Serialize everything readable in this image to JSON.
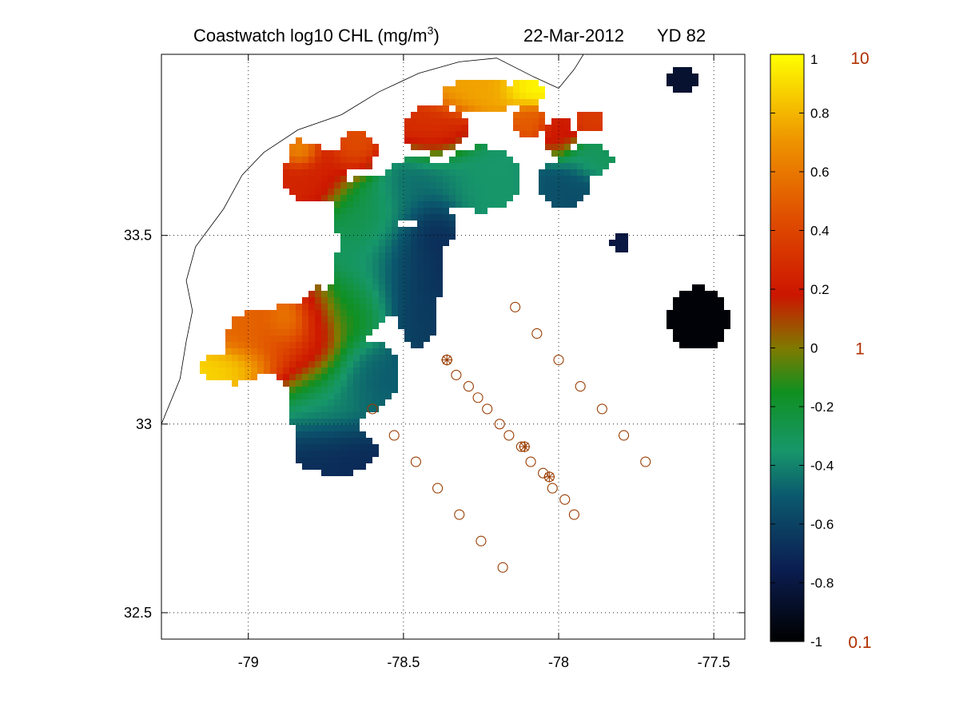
{
  "title": {
    "main": "Coastwatch  log10  CHL (mg/m",
    "superscript": "3",
    "close": ")",
    "date": "22-Mar-2012",
    "yearday": "YD 82"
  },
  "map": {
    "xlim": [
      -79.28,
      -77.4
    ],
    "ylim": [
      32.43,
      33.98
    ],
    "x_ticks": [
      -79,
      -78.5,
      -78,
      -77.5
    ],
    "x_tick_labels": [
      "-79",
      "-78.5",
      "-78",
      "-77.5"
    ],
    "y_ticks": [
      32.5,
      33,
      33.5
    ],
    "y_tick_labels": [
      "32.5",
      "33",
      "33.5"
    ],
    "grid": true,
    "grid_style": "dotted"
  },
  "colorbar": {
    "range": [
      -1,
      1
    ],
    "ticks": [
      1,
      0.8,
      0.6,
      0.4,
      0.2,
      0,
      -0.2,
      -0.4,
      -0.6,
      -0.8,
      -1
    ],
    "tick_labels": [
      "1",
      "0.8",
      "0.6",
      "0.4",
      "0.2",
      "0",
      "-0.2",
      "-0.4",
      "-0.6",
      "-0.8",
      "-1"
    ],
    "linear_labels": [
      {
        "value": 1,
        "label": "10"
      },
      {
        "value": 0,
        "label": "1"
      },
      {
        "value": -1,
        "label": "0.1"
      }
    ],
    "linear_label_color": "#b03000",
    "stops": [
      {
        "v": -1.0,
        "color": "#000000"
      },
      {
        "v": -0.75,
        "color": "#0b1e52"
      },
      {
        "v": -0.5,
        "color": "#0b5a6e"
      },
      {
        "v": -0.35,
        "color": "#17976a"
      },
      {
        "v": -0.15,
        "color": "#109020"
      },
      {
        "v": 0.0,
        "color": "#7f7a00"
      },
      {
        "v": 0.18,
        "color": "#cc1500"
      },
      {
        "v": 0.45,
        "color": "#e05000"
      },
      {
        "v": 0.7,
        "color": "#ee9200"
      },
      {
        "v": 1.0,
        "color": "#ffff00"
      }
    ]
  },
  "stations": {
    "marker_color": "#9a3c00",
    "lines": [
      [
        [
          -78.6,
          33.04
        ],
        [
          -78.53,
          32.97
        ],
        [
          -78.46,
          32.9
        ],
        [
          -78.39,
          32.83
        ],
        [
          -78.32,
          32.76
        ],
        [
          -78.25,
          32.69
        ],
        [
          -78.18,
          32.62
        ]
      ],
      [
        [
          -78.36,
          33.17
        ],
        [
          -78.33,
          33.13
        ],
        [
          -78.29,
          33.1
        ],
        [
          -78.26,
          33.07
        ],
        [
          -78.23,
          33.04
        ],
        [
          -78.19,
          33.0
        ],
        [
          -78.16,
          32.97
        ],
        [
          -78.12,
          32.94
        ],
        [
          -78.09,
          32.9
        ],
        [
          -78.05,
          32.87
        ],
        [
          -78.02,
          32.83
        ],
        [
          -77.98,
          32.8
        ],
        [
          -77.95,
          32.76
        ]
      ],
      [
        [
          -78.14,
          33.31
        ],
        [
          -78.07,
          33.24
        ],
        [
          -78.0,
          33.17
        ],
        [
          -77.93,
          33.1
        ],
        [
          -77.86,
          33.04
        ],
        [
          -77.79,
          32.97
        ],
        [
          -77.72,
          32.9
        ]
      ]
    ],
    "starred": [
      [
        -78.36,
        33.17
      ],
      [
        -78.11,
        32.94
      ],
      [
        -78.03,
        32.86
      ]
    ]
  },
  "chl_patches": [
    {
      "lon": -79.05,
      "lat": 33.15,
      "rx": 0.1,
      "ry": 0.04,
      "v": 0.9
    },
    {
      "lon": -78.95,
      "lat": 33.22,
      "rx": 0.12,
      "ry": 0.08,
      "v": 0.55
    },
    {
      "lon": -78.82,
      "lat": 33.2,
      "rx": 0.12,
      "ry": 0.1,
      "v": 0.25
    },
    {
      "lon": -78.86,
      "lat": 33.27,
      "rx": 0.06,
      "ry": 0.05,
      "v": 0.75
    },
    {
      "lon": -78.78,
      "lat": 33.28,
      "rx": 0.05,
      "ry": 0.08,
      "v": 0.2
    },
    {
      "lon": -78.68,
      "lat": 33.3,
      "rx": 0.1,
      "ry": 0.08,
      "v": -0.1
    },
    {
      "lon": -78.75,
      "lat": 33.05,
      "rx": 0.12,
      "ry": 0.1,
      "v": -0.4
    },
    {
      "lon": -78.72,
      "lat": 32.93,
      "rx": 0.13,
      "ry": 0.06,
      "v": -0.72
    },
    {
      "lon": -78.62,
      "lat": 33.13,
      "rx": 0.1,
      "ry": 0.09,
      "v": -0.5
    },
    {
      "lon": -78.6,
      "lat": 33.4,
      "rx": 0.12,
      "ry": 0.12,
      "v": -0.35
    },
    {
      "lon": -78.48,
      "lat": 33.4,
      "rx": 0.1,
      "ry": 0.12,
      "v": -0.7
    },
    {
      "lon": -78.45,
      "lat": 33.28,
      "rx": 0.06,
      "ry": 0.07,
      "v": -0.62
    },
    {
      "lon": -78.62,
      "lat": 33.55,
      "rx": 0.1,
      "ry": 0.1,
      "v": -0.25
    },
    {
      "lon": -78.78,
      "lat": 33.66,
      "rx": 0.1,
      "ry": 0.07,
      "v": 0.25
    },
    {
      "lon": -78.83,
      "lat": 33.72,
      "rx": 0.04,
      "ry": 0.03,
      "v": 0.75
    },
    {
      "lon": -78.65,
      "lat": 33.72,
      "rx": 0.06,
      "ry": 0.05,
      "v": 0.45
    },
    {
      "lon": -78.45,
      "lat": 33.62,
      "rx": 0.12,
      "ry": 0.08,
      "v": -0.45
    },
    {
      "lon": -78.4,
      "lat": 33.52,
      "rx": 0.06,
      "ry": 0.06,
      "v": -0.7
    },
    {
      "lon": -78.25,
      "lat": 33.65,
      "rx": 0.12,
      "ry": 0.08,
      "v": -0.35
    },
    {
      "lon": -78.4,
      "lat": 33.78,
      "rx": 0.1,
      "ry": 0.06,
      "v": 0.3
    },
    {
      "lon": -78.25,
      "lat": 33.87,
      "rx": 0.12,
      "ry": 0.04,
      "v": 0.75
    },
    {
      "lon": -78.1,
      "lat": 33.88,
      "rx": 0.06,
      "ry": 0.03,
      "v": 1.0
    },
    {
      "lon": -78.1,
      "lat": 33.8,
      "rx": 0.05,
      "ry": 0.04,
      "v": 0.5
    },
    {
      "lon": -78.0,
      "lat": 33.76,
      "rx": 0.05,
      "ry": 0.05,
      "v": 0.2
    },
    {
      "lon": -77.98,
      "lat": 33.64,
      "rx": 0.08,
      "ry": 0.06,
      "v": -0.55
    },
    {
      "lon": -77.9,
      "lat": 33.7,
      "rx": 0.07,
      "ry": 0.04,
      "v": -0.3
    },
    {
      "lon": -77.9,
      "lat": 33.8,
      "rx": 0.04,
      "ry": 0.03,
      "v": 0.35
    },
    {
      "lon": -77.55,
      "lat": 33.28,
      "rx": 0.09,
      "ry": 0.08,
      "v": -0.98
    },
    {
      "lon": -77.8,
      "lat": 33.48,
      "rx": 0.03,
      "ry": 0.02,
      "v": -0.8
    },
    {
      "lon": -77.6,
      "lat": 33.91,
      "rx": 0.05,
      "ry": 0.03,
      "v": -0.85
    }
  ],
  "coastline": [
    [
      -79.28,
      33.0
    ],
    [
      -79.22,
      33.12
    ],
    [
      -79.2,
      33.22
    ],
    [
      -79.18,
      33.3
    ],
    [
      -79.2,
      33.38
    ],
    [
      -79.17,
      33.47
    ],
    [
      -79.08,
      33.57
    ],
    [
      -79.02,
      33.66
    ],
    [
      -78.95,
      33.72
    ],
    [
      -78.84,
      33.78
    ],
    [
      -78.7,
      33.82
    ],
    [
      -78.58,
      33.88
    ],
    [
      -78.45,
      33.93
    ],
    [
      -78.32,
      33.96
    ],
    [
      -78.2,
      33.97
    ],
    [
      -78.08,
      33.92
    ],
    [
      -78.0,
      33.89
    ],
    [
      -77.95,
      33.94
    ],
    [
      -77.92,
      33.98
    ]
  ]
}
